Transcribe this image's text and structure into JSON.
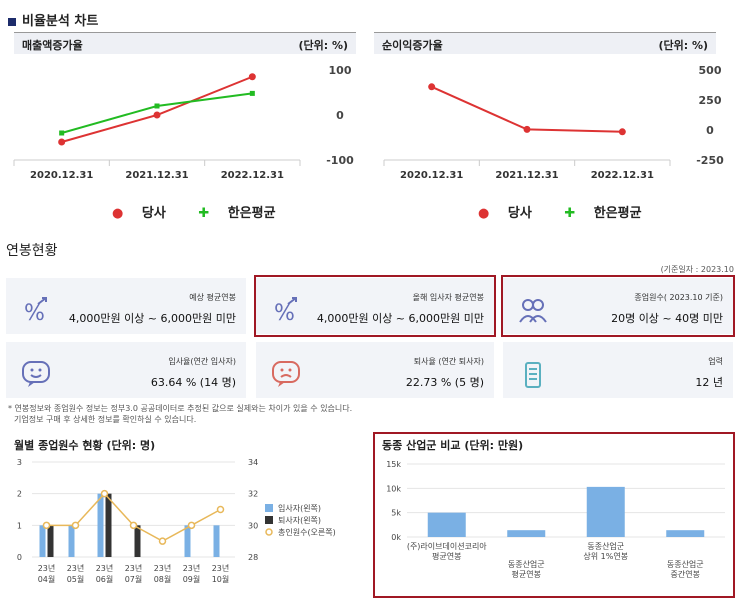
{
  "ratio_section": {
    "title": "비율분석 차트"
  },
  "chart1": {
    "title": "매출액증가율",
    "unit": "(단위: %)"
  },
  "chart2": {
    "title": "순이익증가율",
    "unit": "(단위: %)"
  },
  "legend": {
    "company": "당사",
    "average": "한은평균"
  },
  "salary_section": {
    "title": "연봉현황",
    "ref_date": "(기준일자 : 2023.10"
  },
  "cards": {
    "expected": {
      "label": "예상 평균연봉",
      "value": "4,000만원 이상 ~ 6,000만원 미만"
    },
    "new_hire": {
      "label": "올해 입사자 평균연봉",
      "value": "4,000만원 이상 ~ 6,000만원 미만"
    },
    "employees": {
      "label": "종업원수( 2023.10 기준)",
      "value": "20명 이상 ~ 40명 미만"
    },
    "join_rate": {
      "label": "입사율(연간 입사자)",
      "value": "63.64 % (14 명)"
    },
    "leave_rate": {
      "label": "퇴사율 (연간 퇴사자)",
      "value": "22.73 % (5 명)"
    },
    "years": {
      "label": "업력",
      "value": "12 년"
    }
  },
  "note": {
    "line1": "* 연봉정보와 종업원수 정보는 정부3.0 공공데이터로 추정된 값으로 실제와는 차이가 있을 수 있습니다.",
    "line2": "기업정보 구매 후 상세한 정보를 확인하실 수 있습니다."
  },
  "monthly_panel": {
    "title": "월별 종업원수 현황 (단위: 명)"
  },
  "industry_panel": {
    "title": "동종 산업군 비교 (단위: 만원)"
  },
  "colors": {
    "company": "#dd3333",
    "average": "#22bb22",
    "highlight": "#a01824",
    "bar_blue": "#7ab0e4",
    "bar_dark": "#333333",
    "line_gold": "#e8b85a"
  },
  "chart_data": [
    {
      "type": "line",
      "title": "매출액증가율",
      "categories": [
        "2020.12.31",
        "2021.12.31",
        "2022.12.31"
      ],
      "yticks": [
        "100",
        "0",
        "-100"
      ],
      "ylim": [
        -100,
        100
      ],
      "series": [
        {
          "name": "당사",
          "values": [
            -60,
            0,
            85
          ]
        },
        {
          "name": "한은평균",
          "values": [
            -40,
            20,
            48
          ]
        }
      ]
    },
    {
      "type": "line",
      "title": "순이익증가율",
      "categories": [
        "2020.12.31",
        "2021.12.31",
        "2022.12.31"
      ],
      "yticks": [
        "500",
        "250",
        "0",
        "-250"
      ],
      "ylim": [
        -250,
        500
      ],
      "series": [
        {
          "name": "당사",
          "values": [
            360,
            5,
            -15
          ]
        }
      ]
    },
    {
      "type": "bar",
      "title": "월별 종업원수 현황 (단위: 명)",
      "categories": [
        "23년\n04월",
        "23년\n05월",
        "23년\n06월",
        "23년\n07월",
        "23년\n08월",
        "23년\n09월",
        "23년\n10월"
      ],
      "yticks_left": [
        "3",
        "2",
        "1",
        "0"
      ],
      "yticks_right": [
        "34",
        "32",
        "30",
        "28"
      ],
      "series": [
        {
          "name": "입사자(왼쪽)",
          "values": [
            1,
            1,
            2,
            0,
            0,
            1,
            1
          ]
        },
        {
          "name": "퇴사자(왼쪽)",
          "values": [
            1,
            0,
            2,
            1,
            0,
            0,
            0
          ]
        },
        {
          "name": "총인원수(오른쪽)",
          "values": [
            30,
            30,
            32,
            30,
            29,
            30,
            31
          ]
        }
      ]
    },
    {
      "type": "bar",
      "title": "동종 산업군 비교 (단위: 만원)",
      "categories": [
        "(주)라이브데이션코리아\n평균연봉",
        "동종산업군\n평균연봉",
        "동종산업군\n상위 1%연봉",
        "동종산업군\n중간연봉"
      ],
      "yticks": [
        "15k",
        "10k",
        "5k",
        "0k"
      ],
      "values": [
        5000,
        1400,
        10300,
        1400
      ]
    }
  ]
}
